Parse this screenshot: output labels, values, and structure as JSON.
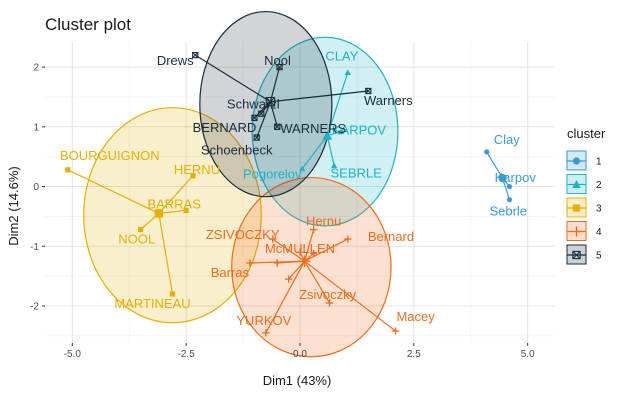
{
  "chart_data": {
    "type": "scatter",
    "title": "Cluster plot",
    "xlabel": "Dim1 (43%)",
    "ylabel": "Dim2 (14.6%)",
    "xlim": [
      -5.6,
      5.6
    ],
    "ylim": [
      -2.62,
      2.42
    ],
    "xticks": [
      -5,
      -2.5,
      0,
      2.5,
      5
    ],
    "xtick_labels": [
      "-5.0",
      "-2.5",
      "0.0",
      "2.5",
      "5.0"
    ],
    "yticks": [
      -2,
      -1,
      0,
      1,
      2
    ],
    "ytick_labels": [
      "-2",
      "-1",
      "0",
      "1",
      "2"
    ],
    "grid": true,
    "legend": {
      "title": "cluster",
      "position": "right"
    },
    "clusters": [
      {
        "name": "1",
        "color": "#3a9ad9",
        "marker": "circle",
        "center": [
          4.45,
          0.14
        ],
        "ellipse": null,
        "points": [
          {
            "label": "Clay",
            "x": 4.1,
            "y": 0.58
          },
          {
            "label": "Karpov",
            "x": 4.45,
            "y": 0.14
          },
          {
            "label": "Sebrle",
            "x": 4.6,
            "y": -0.22
          },
          {
            "label": "",
            "x": 4.6,
            "y": 0.0
          }
        ]
      },
      {
        "name": "2",
        "color": "#1bb5c4",
        "marker": "triangle",
        "center": [
          0.6,
          0.85
        ],
        "ellipse": {
          "cx": 0.55,
          "cy": 0.92,
          "rx": 1.6,
          "ry": 1.58
        },
        "points": [
          {
            "label": "CLAY",
            "x": 1.05,
            "y": 1.91
          },
          {
            "label": "KARPOV",
            "x": 0.9,
            "y": 0.92
          },
          {
            "label": "Pogorelov",
            "x": 0.05,
            "y": 0.3
          },
          {
            "label": "SEBRLE",
            "x": 0.75,
            "y": 0.35
          }
        ]
      },
      {
        "name": "3",
        "color": "#e6b000",
        "marker": "square",
        "center": [
          -3.1,
          -0.45
        ],
        "ellipse": {
          "cx": -2.8,
          "cy": -0.48,
          "rx": 1.95,
          "ry": 1.8
        },
        "points": [
          {
            "label": "BOURGUIGNON",
            "x": -5.1,
            "y": 0.28
          },
          {
            "label": "HERNU",
            "x": -2.35,
            "y": 0.18
          },
          {
            "label": "BARRAS",
            "x": -2.5,
            "y": -0.4
          },
          {
            "label": "NOOL",
            "x": -3.5,
            "y": -0.72
          },
          {
            "label": "MARTINEAU",
            "x": -2.8,
            "y": -1.8
          }
        ]
      },
      {
        "name": "4",
        "color": "#f26a1b",
        "marker": "cross",
        "center": [
          0.1,
          -1.25
        ],
        "ellipse": {
          "cx": 0.25,
          "cy": -1.35,
          "rx": 1.75,
          "ry": 1.5
        },
        "points": [
          {
            "label": "Hernu",
            "x": 0.3,
            "y": -0.72
          },
          {
            "label": "Bernard",
            "x": 1.05,
            "y": -0.88
          },
          {
            "label": "ZSIVOCZKY",
            "x": -0.6,
            "y": -0.88
          },
          {
            "label": "McMULLEN",
            "x": 0.0,
            "y": -1.1
          },
          {
            "label": "Barras",
            "x": -1.1,
            "y": -1.28
          },
          {
            "label": "Zsivoczky",
            "x": 0.65,
            "y": -1.95
          },
          {
            "label": "YURKOV",
            "x": -0.75,
            "y": -2.45
          },
          {
            "label": "Macey",
            "x": 2.1,
            "y": -2.42
          },
          {
            "label": "",
            "x": 0.3,
            "y": -1.12
          },
          {
            "label": "",
            "x": -0.5,
            "y": -1.28
          },
          {
            "label": "",
            "x": -0.25,
            "y": -1.55
          }
        ]
      },
      {
        "name": "5",
        "color": "#1a2b3c",
        "marker": "square-x",
        "center": [
          -0.65,
          1.42
        ],
        "ellipse": {
          "cx": -0.75,
          "cy": 1.38,
          "rx": 1.45,
          "ry": 1.55
        },
        "points": [
          {
            "label": "Drews",
            "x": -2.3,
            "y": 2.2
          },
          {
            "label": "Nool",
            "x": -0.45,
            "y": 2.0
          },
          {
            "label": "Warners",
            "x": 1.5,
            "y": 1.6
          },
          {
            "label": "Schwarzl",
            "x": -0.85,
            "y": 1.22
          },
          {
            "label": "WARNERS",
            "x": -0.5,
            "y": 1.0
          },
          {
            "label": "BERNARD",
            "x": -1.0,
            "y": 1.15
          },
          {
            "label": "Schoenbeck",
            "x": -0.95,
            "y": 0.82
          }
        ]
      }
    ]
  }
}
